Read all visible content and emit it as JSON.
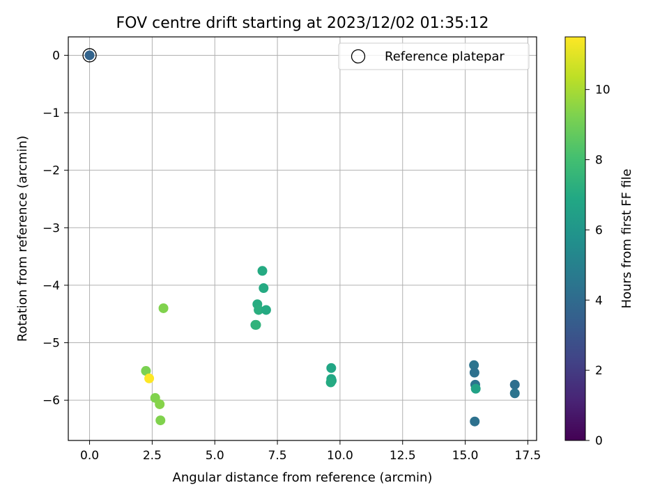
{
  "chart_data": {
    "type": "scatter",
    "title": "FOV centre drift starting at 2023/12/02 01:35:12",
    "xlabel": "Angular distance from reference (arcmin)",
    "ylabel": "Rotation from reference (arcmin)",
    "xlim": [
      -0.85,
      17.85
    ],
    "ylim": [
      -6.7,
      0.32
    ],
    "xticks": [
      "0.0",
      "2.5",
      "5.0",
      "7.5",
      "10.0",
      "12.5",
      "15.0",
      "17.5"
    ],
    "xtick_values": [
      0,
      2.5,
      5,
      7.5,
      10,
      12.5,
      15,
      17.5
    ],
    "yticks": [
      "0",
      "−1",
      "−2",
      "−3",
      "−4",
      "−5",
      "−6"
    ],
    "ytick_values": [
      0,
      -1,
      -2,
      -3,
      -4,
      -5,
      -6
    ],
    "grid": true,
    "colormap": "viridis",
    "colorbar": {
      "label": "Hours from first FF file",
      "range": [
        0,
        11.5
      ],
      "ticks": [
        "0",
        "2",
        "4",
        "6",
        "8",
        "10"
      ],
      "tick_values": [
        0,
        2,
        4,
        6,
        8,
        10
      ]
    },
    "legend": {
      "placement": "top-right",
      "entries": [
        "Reference platepar"
      ]
    },
    "reference_point": {
      "x": 0.0,
      "y": 0.0,
      "hours": 0.0
    },
    "points": [
      {
        "x": 0.0,
        "y": 0.0,
        "hours": 3.7
      },
      {
        "x": 2.95,
        "y": -4.4,
        "hours": 9.3
      },
      {
        "x": 2.25,
        "y": -5.49,
        "hours": 9.2
      },
      {
        "x": 2.38,
        "y": -5.62,
        "hours": 11.5
      },
      {
        "x": 2.62,
        "y": -5.96,
        "hours": 9.3
      },
      {
        "x": 2.8,
        "y": -6.07,
        "hours": 9.4
      },
      {
        "x": 2.83,
        "y": -6.35,
        "hours": 9.3
      },
      {
        "x": 6.9,
        "y": -3.75,
        "hours": 7.0
      },
      {
        "x": 6.95,
        "y": -4.05,
        "hours": 7.0
      },
      {
        "x": 6.7,
        "y": -4.33,
        "hours": 7.1
      },
      {
        "x": 6.75,
        "y": -4.43,
        "hours": 7.2
      },
      {
        "x": 7.05,
        "y": -4.43,
        "hours": 7.0
      },
      {
        "x": 6.62,
        "y": -4.69,
        "hours": 7.2
      },
      {
        "x": 6.65,
        "y": -4.69,
        "hours": 7.4
      },
      {
        "x": 9.65,
        "y": -5.44,
        "hours": 6.8
      },
      {
        "x": 9.65,
        "y": -5.63,
        "hours": 6.9
      },
      {
        "x": 9.67,
        "y": -5.66,
        "hours": 6.8
      },
      {
        "x": 9.63,
        "y": -5.69,
        "hours": 7.0
      },
      {
        "x": 15.35,
        "y": -5.39,
        "hours": 4.4
      },
      {
        "x": 15.37,
        "y": -5.52,
        "hours": 4.3
      },
      {
        "x": 15.4,
        "y": -5.73,
        "hours": 4.4
      },
      {
        "x": 15.42,
        "y": -5.8,
        "hours": 6.6
      },
      {
        "x": 15.38,
        "y": -6.37,
        "hours": 4.3
      },
      {
        "x": 16.98,
        "y": -5.73,
        "hours": 4.2
      },
      {
        "x": 16.98,
        "y": -5.88,
        "hours": 4.4
      }
    ]
  }
}
